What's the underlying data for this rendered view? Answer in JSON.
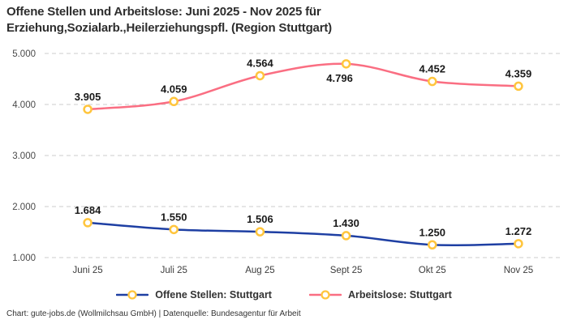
{
  "title": {
    "lines": [
      "Offene Stellen und Arbeitslose: Juni 2025 - Nov 2025 für",
      "Erziehung,Sozialarb.,Heilerziehungspfl. (Region Stuttgart)"
    ]
  },
  "footer": {
    "text": "Chart: gute-jobs.de (Wollmilchsau GmbH) | Datenquelle: Bundesagentur für Arbeit"
  },
  "chart_data": {
    "type": "line",
    "categories": [
      "Juni 25",
      "Juli 25",
      "Aug 25",
      "Sept 25",
      "Okt 25",
      "Nov 25"
    ],
    "series": [
      {
        "name": "Offene Stellen: Stuttgart",
        "color": "#1E3FA3",
        "values": [
          1684,
          1550,
          1506,
          1430,
          1250,
          1272
        ],
        "point_labels": [
          "1.684",
          "1.550",
          "1.506",
          "1.430",
          "1.250",
          "1.272"
        ],
        "label_positions": [
          "above",
          "above",
          "above",
          "above",
          "above",
          "above"
        ]
      },
      {
        "name": "Arbeitslose: Stuttgart",
        "color": "#FA6E82",
        "values": [
          3905,
          4059,
          4564,
          4796,
          4452,
          4359
        ],
        "point_labels": [
          "3.905",
          "4.059",
          "4.564",
          "4.796",
          "4.452",
          "4.359"
        ],
        "label_positions": [
          "above",
          "above",
          "above",
          "below",
          "above",
          "above"
        ]
      }
    ],
    "marker": {
      "fill": "#FFFFFF",
      "stroke": "#FFC53D"
    },
    "ylim": [
      1000,
      5000
    ],
    "yticks": [
      1000,
      2000,
      3000,
      4000,
      5000
    ],
    "ytick_labels": [
      "1.000",
      "2.000",
      "3.000",
      "4.000",
      "5.000"
    ],
    "grid": {
      "horizontal": true,
      "style": "dashed",
      "color": "#CCCCCC"
    },
    "legend_position": "bottom",
    "smooth": true,
    "label_color": "#1A1A1A",
    "tick_color": "#4A4A4A"
  }
}
